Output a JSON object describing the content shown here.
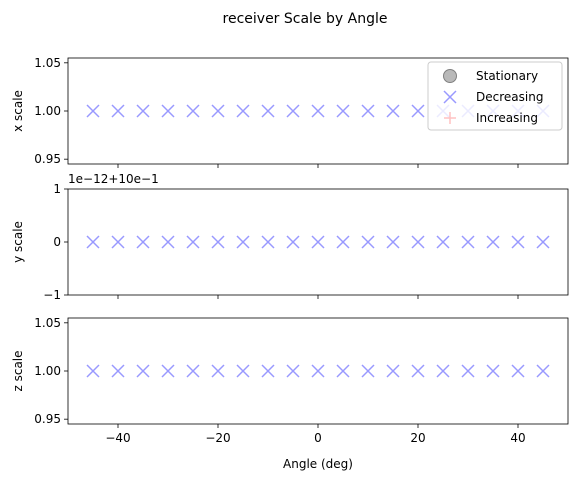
{
  "chart_data": {
    "type": "scatter",
    "title": "receiver Scale by Angle",
    "xlabel": "Angle (deg)",
    "x_ticks": [
      -40,
      -20,
      0,
      20,
      40
    ],
    "x_tick_labels": [
      "−40",
      "−20",
      "0",
      "20",
      "40"
    ],
    "xlim": [
      -50,
      50
    ],
    "x": [
      -45,
      -40,
      -35,
      -30,
      -25,
      -20,
      -15,
      -10,
      -5,
      0,
      5,
      10,
      15,
      20,
      25,
      30,
      35,
      40,
      45
    ],
    "legend": {
      "placement": "top-right",
      "entries": [
        {
          "label": "Stationary",
          "marker": "circle",
          "color": "#808080"
        },
        {
          "label": "Decreasing",
          "marker": "x",
          "color": "#9999ff"
        },
        {
          "label": "Increasing",
          "marker": "plus",
          "color": "#ff9999"
        }
      ]
    },
    "panels": [
      {
        "ylabel": "x scale",
        "ylim": [
          0.945,
          1.055
        ],
        "y_ticks": [
          0.95,
          1.0,
          1.05
        ],
        "y_tick_labels": [
          "0.95",
          "1.00",
          "1.05"
        ],
        "offset_label": "",
        "series": [
          {
            "name": "Decreasing",
            "marker": "x",
            "color": "#9999ff",
            "y": [
              1,
              1,
              1,
              1,
              1,
              1,
              1,
              1,
              1,
              1,
              1,
              1,
              1,
              1,
              1,
              1,
              1,
              1,
              1
            ]
          }
        ]
      },
      {
        "ylabel": "y scale",
        "ylim": [
          -1,
          1
        ],
        "y_ticks": [
          -1,
          0,
          1
        ],
        "y_tick_labels": [
          "−1",
          "0",
          "1"
        ],
        "offset_label": "1e−12+10e−1",
        "series": [
          {
            "name": "Decreasing",
            "marker": "x",
            "color": "#9999ff",
            "y": [
              0,
              0,
              0,
              0,
              0,
              0,
              0,
              0,
              0,
              0,
              0,
              0,
              0,
              0,
              0,
              0,
              0,
              0,
              0
            ]
          }
        ]
      },
      {
        "ylabel": "z scale",
        "ylim": [
          0.945,
          1.055
        ],
        "y_ticks": [
          0.95,
          1.0,
          1.05
        ],
        "y_tick_labels": [
          "0.95",
          "1.00",
          "1.05"
        ],
        "offset_label": "",
        "series": [
          {
            "name": "Decreasing",
            "marker": "x",
            "color": "#9999ff",
            "y": [
              1,
              1,
              1,
              1,
              1,
              1,
              1,
              1,
              1,
              1,
              1,
              1,
              1,
              1,
              1,
              1,
              1,
              1,
              1
            ]
          }
        ]
      }
    ]
  }
}
